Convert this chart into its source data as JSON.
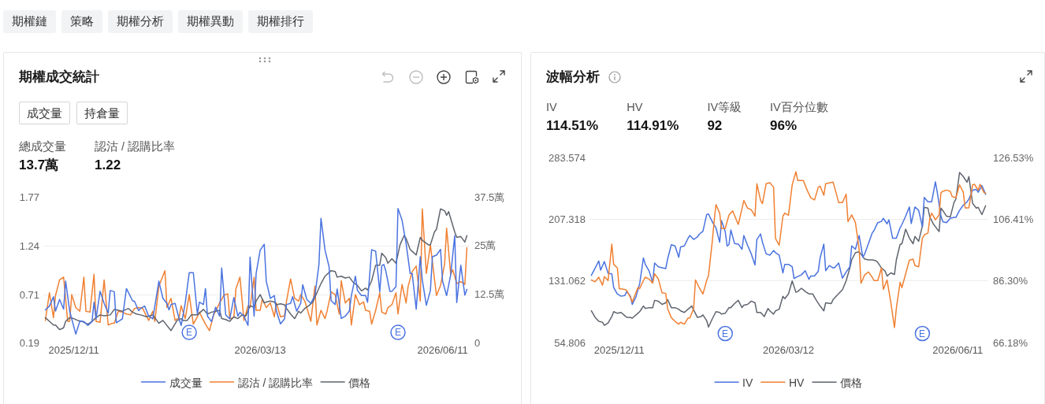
{
  "chart_data": [
    {
      "type": "other",
      "annotations": [
        "期權鏈",
        "策略",
        "期權分析",
        "期權異動",
        "期權排行"
      ]
    },
    {
      "type": "line",
      "title": "期權成交統計",
      "annotations": [
        "總成交量",
        "13.7萬",
        "認沽 / 認購比率",
        "1.22",
        {
          "text": "E",
          "x": "2026-02-06",
          "y": 0.3
        },
        {
          "text": "E",
          "x": "2026-05-20",
          "y": 0.3
        }
      ],
      "xlim": [
        "2025-11-26",
        "2026-06-24"
      ],
      "xticks": [
        {
          "value": "2025-12-11",
          "label": "2025/12/11"
        },
        {
          "value": "2026-03-13",
          "label": "2026/03/13"
        },
        {
          "value": "2026-06-11",
          "label": "2026/06/11"
        }
      ],
      "ylim": [
        0.19,
        1.77
      ],
      "yticks": [
        0.19,
        0.71,
        1.24,
        1.77
      ],
      "y2lim": [
        0,
        37.5
      ],
      "y2ticks": [
        0,
        {
          "value": 12.5,
          "label": "12.5萬"
        },
        {
          "value": 25,
          "label": "25萬"
        },
        {
          "value": 37.5,
          "label": "37.5萬"
        }
      ],
      "grid": "y",
      "legend": "bottom",
      "series": [
        {
          "name": "成交量",
          "color": "#4a73e0",
          "axis": "y2",
          "x": [
            "2025-11-27",
            "2025-11-29",
            "2025-12-01",
            "2025-12-02",
            "2025-12-04",
            "2025-12-06",
            "2025-12-07",
            "2025-12-09",
            "2025-12-12",
            "2025-12-14",
            "2025-12-16",
            "2025-12-18",
            "2025-12-20",
            "2025-12-21",
            "2025-12-22",
            "2025-12-24",
            "2025-12-26",
            "2025-12-28",
            "2025-12-29",
            "2025-12-31",
            "2026-01-01",
            "2026-01-04",
            "2026-01-06",
            "2026-01-09",
            "2026-01-10",
            "2026-01-12",
            "2026-01-13",
            "2026-01-15",
            "2026-01-17",
            "2026-01-19",
            "2026-01-22",
            "2026-01-24",
            "2026-01-26",
            "2026-01-27",
            "2026-01-28",
            "2026-01-30",
            "2026-02-01",
            "2026-02-02",
            "2026-02-04",
            "2026-02-06",
            "2026-02-08",
            "2026-02-10",
            "2026-02-11",
            "2026-02-13",
            "2026-02-14",
            "2026-02-15",
            "2026-02-17",
            "2026-02-19",
            "2026-02-21",
            "2026-02-22",
            "2026-02-24",
            "2026-02-26",
            "2026-02-28",
            "2026-03-02",
            "2026-03-03",
            "2026-03-05",
            "2026-03-07",
            "2026-03-08",
            "2026-03-10",
            "2026-03-11",
            "2026-03-13",
            "2026-03-15",
            "2026-03-16",
            "2026-03-18",
            "2026-03-20",
            "2026-03-21",
            "2026-03-23",
            "2026-03-25",
            "2026-03-26",
            "2026-03-28",
            "2026-03-29",
            "2026-03-31",
            "2026-04-02",
            "2026-04-03",
            "2026-04-05",
            "2026-04-07",
            "2026-04-09",
            "2026-04-11",
            "2026-04-12",
            "2026-04-14",
            "2026-04-16",
            "2026-04-17",
            "2026-04-19",
            "2026-04-20",
            "2026-04-22",
            "2026-04-24",
            "2026-04-26",
            "2026-04-27",
            "2026-04-29",
            "2026-04-30",
            "2026-05-02",
            "2026-05-04",
            "2026-05-05",
            "2026-05-07",
            "2026-05-09",
            "2026-05-11",
            "2026-05-12",
            "2026-05-13",
            "2026-05-14",
            "2026-05-16",
            "2026-05-17",
            "2026-05-19",
            "2026-05-20",
            "2026-05-22",
            "2026-05-24",
            "2026-05-26",
            "2026-05-27",
            "2026-05-29",
            "2026-05-31",
            "2026-06-01",
            "2026-06-03",
            "2026-06-05",
            "2026-06-06",
            "2026-06-08",
            "2026-06-10",
            "2026-06-11",
            "2026-06-13",
            "2026-06-15",
            "2026-06-17",
            "2026-06-18",
            "2026-06-20",
            "2026-06-22",
            "2026-06-23"
          ],
          "values": [
            8.4,
            9.4,
            11.8,
            8.1,
            11.1,
            8.6,
            15.8,
            8.1,
            2.2,
            5.5,
            5.4,
            4.4,
            5.4,
            10.4,
            6.1,
            13.2,
            10.1,
            7.6,
            13.4,
            13.1,
            5.1,
            6.1,
            13.9,
            10.8,
            10.6,
            8.2,
            8.8,
            9.4,
            6.8,
            6.1,
            15.8,
            11.4,
            10.1,
            8.4,
            9.8,
            10.1,
            6.1,
            4.4,
            10.1,
            18.0,
            18.0,
            7.4,
            10.4,
            9.8,
            13.9,
            6.8,
            5.4,
            9.1,
            6.8,
            19.2,
            7.1,
            6.1,
            11.6,
            6.8,
            7.8,
            6.8,
            4.4,
            22.0,
            6.8,
            17.8,
            23.8,
            25.3,
            15.8,
            11.4,
            12.1,
            8.1,
            4.8,
            6.1,
            9.8,
            10.1,
            11.8,
            8.1,
            10.1,
            14.9,
            11.1,
            10.1,
            12.1,
            20.1,
            32.0,
            23.8,
            19.5,
            10.8,
            9.8,
            13.8,
            6.2,
            6.8,
            8.1,
            12.1,
            17.1,
            13.4,
            12.1,
            12.1,
            10.4,
            23.9,
            23.5,
            13.1,
            19.8,
            20.1,
            18.4,
            13.2,
            13.2,
            14.4,
            34.5,
            31.5,
            25.5,
            17.8,
            17.8,
            8.6,
            22.1,
            16.1,
            9.6,
            13.4,
            22.1,
            22.5,
            24.0,
            15.8,
            12.1,
            17.4,
            27.5,
            10.3,
            19.9,
            12.2,
            13.7
          ]
        },
        {
          "name": "認沽 / 認購比率",
          "color": "#f08032",
          "x": [
            "2025-11-27",
            "2025-11-29",
            "2025-12-01",
            "2025-12-02",
            "2025-12-04",
            "2025-12-06",
            "2025-12-08",
            "2025-12-09",
            "2025-12-10",
            "2025-12-12",
            "2025-12-14",
            "2025-12-16",
            "2025-12-17",
            "2025-12-19",
            "2025-12-21",
            "2025-12-22",
            "2025-12-24",
            "2025-12-26",
            "2025-12-28",
            "2025-12-30",
            "2025-12-31",
            "2026-01-02",
            "2026-01-04",
            "2026-01-06",
            "2026-01-08",
            "2026-01-10",
            "2026-01-12",
            "2026-01-14",
            "2026-01-17",
            "2026-01-19",
            "2026-01-20",
            "2026-01-22",
            "2026-01-25",
            "2026-01-26",
            "2026-01-28",
            "2026-01-30",
            "2026-02-01",
            "2026-02-02",
            "2026-02-04",
            "2026-02-06",
            "2026-02-08",
            "2026-02-10",
            "2026-02-11",
            "2026-02-14",
            "2026-02-16",
            "2026-02-18",
            "2026-02-19",
            "2026-02-21",
            "2026-02-23",
            "2026-02-25",
            "2026-02-26",
            "2026-02-28",
            "2026-03-01",
            "2026-03-03",
            "2026-03-05",
            "2026-03-07",
            "2026-03-08",
            "2026-03-10",
            "2026-03-11",
            "2026-03-13",
            "2026-03-14",
            "2026-03-16",
            "2026-03-18",
            "2026-03-20",
            "2026-03-21",
            "2026-03-23",
            "2026-03-25",
            "2026-03-26",
            "2026-03-28",
            "2026-03-30",
            "2026-04-01",
            "2026-04-02",
            "2026-04-04",
            "2026-04-05",
            "2026-04-07",
            "2026-04-09",
            "2026-04-10",
            "2026-04-12",
            "2026-04-14",
            "2026-04-15",
            "2026-04-17",
            "2026-04-19",
            "2026-04-21",
            "2026-04-22",
            "2026-04-24",
            "2026-04-26",
            "2026-04-27",
            "2026-04-29",
            "2026-05-01",
            "2026-05-03",
            "2026-05-04",
            "2026-05-06",
            "2026-05-07",
            "2026-05-09",
            "2026-05-11",
            "2026-05-12",
            "2026-05-14",
            "2026-05-15",
            "2026-05-17",
            "2026-05-19",
            "2026-05-20",
            "2026-05-22",
            "2026-05-24",
            "2026-05-25",
            "2026-05-27",
            "2026-05-29",
            "2026-05-31",
            "2026-06-01",
            "2026-06-03",
            "2026-06-05",
            "2026-06-07",
            "2026-06-08",
            "2026-06-10",
            "2026-06-12",
            "2026-06-13",
            "2026-06-15",
            "2026-06-16",
            "2026-06-18",
            "2026-06-20",
            "2026-06-22",
            "2026-06-23"
          ],
          "values": [
            0.43,
            0.73,
            0.46,
            0.7,
            0.87,
            0.9,
            0.42,
            0.42,
            0.71,
            0.57,
            0.53,
            0.9,
            0.53,
            0.52,
            0.93,
            0.42,
            0.41,
            0.87,
            0.38,
            0.4,
            0.4,
            0.53,
            0.52,
            0.5,
            0.49,
            0.56,
            0.57,
            0.56,
            0.43,
            0.53,
            0.42,
            0.8,
            0.97,
            0.57,
            0.67,
            0.43,
            0.46,
            0.59,
            0.45,
            0.71,
            0.39,
            0.47,
            0.52,
            0.39,
            0.32,
            0.49,
            0.53,
            0.62,
            0.7,
            0.72,
            0.45,
            0.46,
            0.77,
            0.9,
            0.43,
            0.59,
            0.57,
            0.9,
            0.54,
            0.54,
            0.66,
            0.57,
            0.62,
            0.47,
            0.62,
            0.47,
            0.48,
            0.64,
            0.88,
            0.67,
            0.64,
            0.71,
            0.64,
            0.57,
            0.42,
            0.8,
            0.38,
            0.54,
            0.45,
            0.53,
            0.74,
            0.71,
            0.5,
            0.86,
            0.62,
            0.67,
            0.38,
            0.71,
            0.6,
            0.63,
            0.54,
            0.53,
            0.39,
            0.54,
            0.73,
            0.52,
            0.5,
            0.57,
            0.6,
            0.73,
            0.5,
            0.82,
            0.62,
            0.8,
            0.96,
            1.02,
            0.64,
            1.64,
            0.94,
            1.25,
            0.88,
            0.7,
            0.81,
            1.04,
            1.43,
            0.93,
            0.98,
            0.83,
            0.85,
            0.82,
            1.22
          ]
        },
        {
          "name": "價格",
          "color": "#5f646e",
          "x": [
            "2025-11-27",
            "2025-11-29",
            "2025-12-01",
            "2025-12-02",
            "2025-12-04",
            "2025-12-06",
            "2025-12-07",
            "2025-12-09",
            "2025-12-11",
            "2025-12-13",
            "2025-12-15",
            "2025-12-18",
            "2025-12-20",
            "2025-12-22",
            "2025-12-24",
            "2025-12-26",
            "2025-12-29",
            "2025-12-31",
            "2026-01-02",
            "2026-01-04",
            "2026-01-07",
            "2026-01-09",
            "2026-01-11",
            "2026-01-13",
            "2026-01-16",
            "2026-01-19",
            "2026-01-22",
            "2026-01-24",
            "2026-01-28",
            "2026-01-31",
            "2026-02-02",
            "2026-02-03",
            "2026-02-05",
            "2026-02-07",
            "2026-02-10",
            "2026-02-13",
            "2026-02-15",
            "2026-02-17",
            "2026-02-19",
            "2026-02-21",
            "2026-02-22",
            "2026-02-24",
            "2026-02-26",
            "2026-02-28",
            "2026-03-02",
            "2026-03-04",
            "2026-03-06",
            "2026-03-08",
            "2026-03-10",
            "2026-03-11",
            "2026-03-13",
            "2026-03-15",
            "2026-03-16",
            "2026-03-18",
            "2026-03-20",
            "2026-03-21",
            "2026-03-23",
            "2026-03-25",
            "2026-03-26",
            "2026-03-28",
            "2026-03-30",
            "2026-04-01",
            "2026-04-02",
            "2026-04-04",
            "2026-04-06",
            "2026-04-08",
            "2026-04-10",
            "2026-04-12",
            "2026-04-14",
            "2026-04-17",
            "2026-04-19",
            "2026-04-20",
            "2026-04-22",
            "2026-04-24",
            "2026-04-26",
            "2026-04-28",
            "2026-04-30",
            "2026-05-02",
            "2026-05-04",
            "2026-05-05",
            "2026-05-07",
            "2026-05-09",
            "2026-05-11",
            "2026-05-12",
            "2026-05-14",
            "2026-05-15",
            "2026-05-17",
            "2026-05-19",
            "2026-05-21",
            "2026-05-23",
            "2026-05-24",
            "2026-05-26",
            "2026-05-27",
            "2026-05-29",
            "2026-05-31",
            "2026-06-01",
            "2026-06-04",
            "2026-06-05",
            "2026-06-07",
            "2026-06-08",
            "2026-06-10",
            "2026-06-12",
            "2026-06-13",
            "2026-06-14",
            "2026-06-17",
            "2026-06-18",
            "2026-06-20",
            "2026-06-22",
            "2026-06-23"
          ],
          "values": [
            0.46,
            0.42,
            0.38,
            0.38,
            0.33,
            0.35,
            0.42,
            0.46,
            0.45,
            0.43,
            0.42,
            0.39,
            0.42,
            0.46,
            0.49,
            0.48,
            0.49,
            0.55,
            0.54,
            0.53,
            0.56,
            0.52,
            0.5,
            0.49,
            0.47,
            0.49,
            0.4,
            0.43,
            0.32,
            0.43,
            0.45,
            0.43,
            0.43,
            0.49,
            0.49,
            0.55,
            0.5,
            0.52,
            0.53,
            0.54,
            0.45,
            0.44,
            0.42,
            0.47,
            0.45,
            0.49,
            0.48,
            0.59,
            0.57,
            0.64,
            0.71,
            0.62,
            0.63,
            0.64,
            0.63,
            0.6,
            0.61,
            0.6,
            0.56,
            0.5,
            0.45,
            0.53,
            0.51,
            0.56,
            0.59,
            0.63,
            0.73,
            0.83,
            0.91,
            0.97,
            0.96,
            0.9,
            0.91,
            0.89,
            0.9,
            0.84,
            0.81,
            0.75,
            0.78,
            0.76,
            0.86,
            1.03,
            1.03,
            1.16,
            1.11,
            1.05,
            1.1,
            1.05,
            1.25,
            1.35,
            1.32,
            1.2,
            1.18,
            1.14,
            1.33,
            1.3,
            1.25,
            1.25,
            1.39,
            1.42,
            1.64,
            1.62,
            1.57,
            1.61,
            1.39,
            1.33,
            1.34,
            1.28,
            1.35
          ]
        }
      ]
    },
    {
      "type": "other",
      "annotations": [
        "成交量",
        "持倉量"
      ]
    },
    {
      "type": "line",
      "title": "波幅分析",
      "annotations": [
        "IV",
        "114.51%",
        "HV",
        "114.91%",
        "IV等級",
        "92",
        "IV百分位數",
        "96%",
        {
          "text": "E",
          "x": "2026-02-06",
          "y": 66
        },
        {
          "text": "E",
          "x": "2026-05-23",
          "y": 66
        }
      ],
      "xlim": [
        "2025-11-25",
        "2026-06-27"
      ],
      "xticks": [
        {
          "value": "2025-12-11",
          "label": "2025/12/11"
        },
        {
          "value": "2026-03-12",
          "label": "2026/03/12"
        },
        {
          "value": "2026-06-11",
          "label": "2026/06/11"
        }
      ],
      "ylim": [
        54.806,
        283.574
      ],
      "yticks": [
        54.806,
        131.062,
        207.318,
        283.574
      ],
      "y2lim": [
        66.18,
        126.53
      ],
      "y2ticks": [
        {
          "value": 66.18,
          "label": "66.18%"
        },
        {
          "value": 86.3,
          "label": "86.30%"
        },
        {
          "value": 106.41,
          "label": "106.41%"
        },
        {
          "value": 126.53,
          "label": "126.53%"
        }
      ],
      "grid": "y",
      "legend": "bottom",
      "series": [
        {
          "name": "IV",
          "color": "#4a73e0",
          "axis": "y2",
          "x": [
            "2025-11-26",
            "2025-11-28",
            "2025-11-30",
            "2025-12-01",
            "2025-12-03",
            "2025-12-05",
            "2025-12-07",
            "2025-12-08",
            "2025-12-10",
            "2025-12-12",
            "2025-12-14",
            "2025-12-15",
            "2025-12-17",
            "2025-12-18",
            "2025-12-20",
            "2025-12-22",
            "2025-12-24",
            "2025-12-25",
            "2025-12-27",
            "2025-12-29",
            "2025-12-30",
            "2026-01-01",
            "2026-01-03",
            "2026-01-05",
            "2026-01-06",
            "2026-01-08",
            "2026-01-10",
            "2026-01-12",
            "2026-01-13",
            "2026-01-15",
            "2026-01-17",
            "2026-01-18",
            "2026-01-20",
            "2026-01-22",
            "2026-01-23",
            "2026-01-25",
            "2026-01-27",
            "2026-01-28",
            "2026-01-30",
            "2026-02-01",
            "2026-02-03",
            "2026-02-04",
            "2026-02-06",
            "2026-02-07",
            "2026-02-08",
            "2026-02-09",
            "2026-02-11",
            "2026-02-13",
            "2026-02-15",
            "2026-02-16",
            "2026-02-18",
            "2026-02-20",
            "2026-02-22",
            "2026-02-23",
            "2026-02-25",
            "2026-02-26",
            "2026-02-28",
            "2026-03-02",
            "2026-03-04",
            "2026-03-05",
            "2026-03-07",
            "2026-03-09",
            "2026-03-10",
            "2026-03-12",
            "2026-03-14",
            "2026-03-15",
            "2026-03-17",
            "2026-03-19",
            "2026-03-21",
            "2026-03-23",
            "2026-03-24",
            "2026-03-26",
            "2026-03-28",
            "2026-03-29",
            "2026-03-31",
            "2026-04-01",
            "2026-04-03",
            "2026-04-05",
            "2026-04-06",
            "2026-04-08",
            "2026-04-10",
            "2026-04-12",
            "2026-04-14",
            "2026-04-15",
            "2026-04-17",
            "2026-04-19",
            "2026-04-21",
            "2026-04-22",
            "2026-04-24",
            "2026-04-26",
            "2026-04-27",
            "2026-04-29",
            "2026-05-01",
            "2026-05-02",
            "2026-05-04",
            "2026-05-05",
            "2026-05-07",
            "2026-05-09",
            "2026-05-11",
            "2026-05-12",
            "2026-05-14",
            "2026-05-16",
            "2026-05-17",
            "2026-05-19",
            "2026-05-21",
            "2026-05-23",
            "2026-05-24",
            "2026-05-26",
            "2026-05-28",
            "2026-05-30",
            "2026-05-31",
            "2026-06-02",
            "2026-06-03",
            "2026-06-05",
            "2026-06-07",
            "2026-06-09",
            "2026-06-10",
            "2026-06-12",
            "2026-06-14",
            "2026-06-16",
            "2026-06-17",
            "2026-06-19",
            "2026-06-21",
            "2026-06-22",
            "2026-06-24",
            "2026-06-26"
          ],
          "values": [
            88.1,
            90.4,
            92.8,
            89.8,
            92.6,
            88.8,
            88.6,
            84.1,
            82.0,
            81.3,
            81.5,
            82.8,
            81.3,
            78.6,
            81.1,
            85.4,
            93.8,
            91.7,
            89.6,
            85.8,
            92.1,
            90.9,
            90.6,
            90.3,
            93.4,
            98.1,
            97.7,
            94.0,
            97.4,
            97.7,
            100.2,
            101.1,
            99.8,
            100.6,
            101.5,
            102.5,
            107.9,
            108.1,
            105.6,
            103.6,
            98.9,
            105.9,
            102.3,
            97.7,
            98.1,
            102.9,
            98.5,
            98.3,
            96.6,
            101.1,
            97.9,
            95.1,
            91.5,
            99.8,
            101.6,
            98.9,
            95.1,
            94.7,
            96.2,
            95.5,
            94.7,
            88.9,
            91.7,
            91.7,
            90.9,
            87.1,
            87.7,
            88.3,
            89.6,
            86.8,
            87.9,
            87.9,
            89.4,
            93.8,
            98.3,
            89.6,
            91.3,
            90.5,
            90.7,
            92.1,
            87.2,
            89.2,
            90.9,
            97.7,
            96.6,
            101.1,
            94.0,
            95.1,
            98.5,
            101.9,
            102.7,
            105.3,
            105.7,
            106.7,
            104.9,
            106.2,
            100.2,
            100.2,
            103.6,
            104.7,
            107.4,
            110.4,
            105.0,
            110.4,
            109.3,
            104.0,
            113.5,
            112.1,
            112.1,
            118.6,
            115.2,
            107.4,
            105.6,
            105.3,
            106.7,
            107.0,
            107.0,
            109.3,
            111.0,
            112.1,
            112.9,
            115.9,
            116.1,
            115.2,
            117.4,
            114.5
          ]
        },
        {
          "name": "HV",
          "color": "#f08032",
          "axis": "y2",
          "x": [
            "2025-11-26",
            "2025-11-28",
            "2025-11-30",
            "2025-12-02",
            "2025-12-03",
            "2025-12-05",
            "2025-12-07",
            "2025-12-08",
            "2025-12-10",
            "2025-12-11",
            "2025-12-14",
            "2025-12-15",
            "2025-12-17",
            "2025-12-18",
            "2025-12-21",
            "2025-12-22",
            "2025-12-24",
            "2025-12-25",
            "2025-12-27",
            "2025-12-29",
            "2025-12-30",
            "2026-01-01",
            "2026-01-03",
            "2026-01-05",
            "2026-01-06",
            "2026-01-08",
            "2026-01-10",
            "2026-01-12",
            "2026-01-13",
            "2026-01-15",
            "2026-01-17",
            "2026-01-18",
            "2026-01-20",
            "2026-01-21",
            "2026-01-23",
            "2026-01-25",
            "2026-01-27",
            "2026-01-28",
            "2026-01-30",
            "2026-01-31",
            "2026-02-01",
            "2026-02-03",
            "2026-02-04",
            "2026-02-06",
            "2026-02-08",
            "2026-02-10",
            "2026-02-11",
            "2026-02-13",
            "2026-02-15",
            "2026-02-16",
            "2026-02-18",
            "2026-02-20",
            "2026-02-22",
            "2026-02-23",
            "2026-02-25",
            "2026-02-26",
            "2026-02-28",
            "2026-03-02",
            "2026-03-04",
            "2026-03-05",
            "2026-03-07",
            "2026-03-09",
            "2026-03-10",
            "2026-03-12",
            "2026-03-14",
            "2026-03-16",
            "2026-03-17",
            "2026-03-20",
            "2026-03-22",
            "2026-03-24",
            "2026-03-26",
            "2026-03-28",
            "2026-03-29",
            "2026-03-31",
            "2026-04-01",
            "2026-04-05",
            "2026-04-07",
            "2026-04-08",
            "2026-04-10",
            "2026-04-12",
            "2026-04-13",
            "2026-04-15",
            "2026-04-17",
            "2026-04-19",
            "2026-04-20",
            "2026-04-22",
            "2026-04-24",
            "2026-04-26",
            "2026-04-27",
            "2026-04-29",
            "2026-05-01",
            "2026-05-02",
            "2026-05-04",
            "2026-05-06",
            "2026-05-08",
            "2026-05-09",
            "2026-05-11",
            "2026-05-12",
            "2026-05-14",
            "2026-05-16",
            "2026-05-18",
            "2026-05-19",
            "2026-05-21",
            "2026-05-23",
            "2026-05-24",
            "2026-05-26",
            "2026-05-27",
            "2026-05-28",
            "2026-05-30",
            "2026-06-01",
            "2026-06-02",
            "2026-06-03",
            "2026-06-05",
            "2026-06-07",
            "2026-06-08",
            "2026-06-10",
            "2026-06-12",
            "2026-06-14",
            "2026-06-15",
            "2026-06-17",
            "2026-06-19",
            "2026-06-20",
            "2026-06-22",
            "2026-06-23",
            "2026-06-25",
            "2026-06-26"
          ],
          "values": [
            86.6,
            86.0,
            87.5,
            84.9,
            87.7,
            86.4,
            98.3,
            91.7,
            90.5,
            83.8,
            83.5,
            83.2,
            80.9,
            79.4,
            84.1,
            83.8,
            86.4,
            87.5,
            86.9,
            85.6,
            88.6,
            87.0,
            82.4,
            82.2,
            77.3,
            74.3,
            73.1,
            72.2,
            72.8,
            72.2,
            74.2,
            74.2,
            77.3,
            86.6,
            84.1,
            82.0,
            86.4,
            88.1,
            99.0,
            105.6,
            111.2,
            108.4,
            103.4,
            103.4,
            107.8,
            109.1,
            107.6,
            104.7,
            109.8,
            112.5,
            110.0,
            109.5,
            107.4,
            118.0,
            112.5,
            111.5,
            118.0,
            118.3,
            116.8,
            100.2,
            97.9,
            107.4,
            108.4,
            107.7,
            117.6,
            121.9,
            119.0,
            119.0,
            115.9,
            113.4,
            112.7,
            116.8,
            117.2,
            114.2,
            118.0,
            118.5,
            114.1,
            111.8,
            111.8,
            114.6,
            105.6,
            107.8,
            105.3,
            96.6,
            85.5,
            88.3,
            89.2,
            87.5,
            86.4,
            86.4,
            90.5,
            83.5,
            86.6,
            79.4,
            71.1,
            77.3,
            85.8,
            84.1,
            88.6,
            93.0,
            93.4,
            91.3,
            90.9,
            100.2,
            101.3,
            101.9,
            106.7,
            108.4,
            106.2,
            107.8,
            115.1,
            115.5,
            115.9,
            115.5,
            113.8,
            113.4,
            117.6,
            115.2,
            110.1,
            110.1,
            117.6,
            117.8,
            115.9,
            117.8,
            115.2,
            114.9
          ]
        },
        {
          "name": "價格",
          "color": "#5f646e",
          "x": [
            "2025-11-26",
            "2025-11-28",
            "2025-11-30",
            "2025-12-02",
            "2025-12-03",
            "2025-12-05",
            "2025-12-07",
            "2025-12-08",
            "2025-12-10",
            "2025-12-12",
            "2025-12-14",
            "2025-12-15",
            "2025-12-17",
            "2025-12-18",
            "2025-12-21",
            "2025-12-22",
            "2025-12-24",
            "2025-12-25",
            "2025-12-27",
            "2025-12-29",
            "2025-12-30",
            "2026-01-01",
            "2026-01-03",
            "2026-01-05",
            "2026-01-06",
            "2026-01-08",
            "2026-01-10",
            "2026-01-12",
            "2026-01-13",
            "2026-01-15",
            "2026-01-17",
            "2026-01-19",
            "2026-01-20",
            "2026-01-22",
            "2026-01-24",
            "2026-01-25",
            "2026-01-27",
            "2026-01-28",
            "2026-01-30",
            "2026-02-01",
            "2026-02-03",
            "2026-02-04",
            "2026-02-06",
            "2026-02-08",
            "2026-02-09",
            "2026-02-11",
            "2026-02-13",
            "2026-02-15",
            "2026-02-16",
            "2026-02-18",
            "2026-02-20",
            "2026-02-22",
            "2026-02-23",
            "2026-02-25",
            "2026-02-27",
            "2026-03-01",
            "2026-03-02",
            "2026-03-04",
            "2026-03-05",
            "2026-03-07",
            "2026-03-09",
            "2026-03-10",
            "2026-03-12",
            "2026-03-14",
            "2026-03-16",
            "2026-03-17",
            "2026-03-19",
            "2026-03-21",
            "2026-03-23",
            "2026-03-25",
            "2026-03-27",
            "2026-03-29",
            "2026-03-31",
            "2026-04-01",
            "2026-04-04",
            "2026-04-05",
            "2026-04-07",
            "2026-04-10",
            "2026-04-12",
            "2026-04-14",
            "2026-04-15",
            "2026-04-17",
            "2026-04-19",
            "2026-04-21",
            "2026-04-22",
            "2026-04-24",
            "2026-04-26",
            "2026-04-28",
            "2026-04-29",
            "2026-05-01",
            "2026-05-03",
            "2026-05-04",
            "2026-05-06",
            "2026-05-08",
            "2026-05-09",
            "2026-05-11",
            "2026-05-12",
            "2026-05-14",
            "2026-05-16",
            "2026-05-18",
            "2026-05-19",
            "2026-05-21",
            "2026-05-23",
            "2026-05-24",
            "2026-05-26",
            "2026-05-27",
            "2026-05-29",
            "2026-05-30",
            "2026-06-01",
            "2026-06-02",
            "2026-06-03",
            "2026-06-05",
            "2026-06-07",
            "2026-06-09",
            "2026-06-10",
            "2026-06-12",
            "2026-06-14",
            "2026-06-16",
            "2026-06-17",
            "2026-06-19",
            "2026-06-21",
            "2026-06-22",
            "2026-06-24",
            "2026-06-26"
          ],
          "values": [
            94,
            86,
            81,
            80,
            76,
            79,
            87,
            93,
            91,
            92,
            88,
            86,
            86,
            85,
            91,
            93,
            100,
            97,
            98,
            98,
            107,
            106,
            102,
            104,
            108,
            98,
            98,
            96,
            94,
            92,
            96,
            100,
            95,
            86,
            87,
            89,
            82,
            74,
            84,
            93,
            92,
            90,
            91,
            98,
            98,
            103,
            107,
            98,
            101,
            102,
            106,
            104,
            92,
            92,
            87,
            97,
            94,
            90,
            94,
            96,
            112,
            109,
            115,
            131,
            117,
            118,
            122,
            118,
            115,
            115,
            107,
            100,
            94,
            104,
            103,
            108,
            113,
            120,
            131,
            147,
            157,
            166,
            167,
            161,
            158,
            157,
            157,
            156,
            154,
            147,
            143,
            137,
            141,
            139,
            157,
            176,
            177,
            195,
            184,
            177,
            186,
            180,
            199,
            222,
            221,
            210,
            201,
            198,
            192,
            221,
            218,
            211,
            210,
            228,
            232,
            265,
            260,
            253,
            260,
            227,
            221,
            222,
            213,
            224
          ]
        }
      ]
    }
  ]
}
